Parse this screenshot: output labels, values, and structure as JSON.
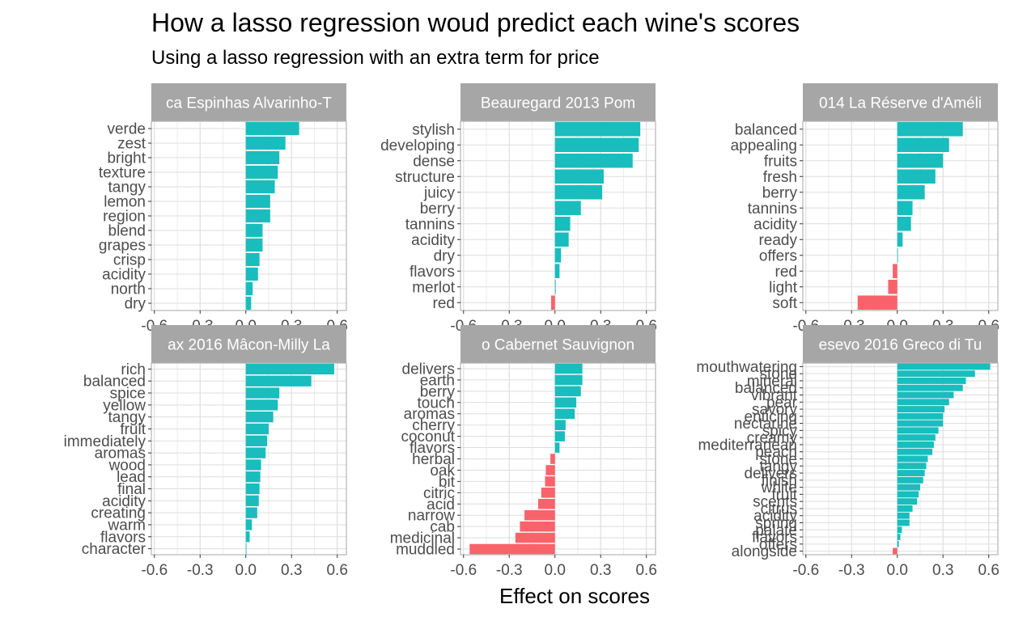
{
  "title": "How a lasso regression woud predict each wine's scores",
  "subtitle": "Using a lasso regression with an extra term for price",
  "xlabel": "Effect on scores",
  "colors": {
    "positive": "#19BDBD",
    "negative": "#F8636B",
    "strip": "#A6A6A6",
    "grid": "#DEDEDE",
    "panel_border": "#B3B3B3"
  },
  "chart_data": [
    {
      "type": "bar",
      "orientation": "horizontal",
      "facet_label": "ca Espinhas Alvarinho-T",
      "xlim": [
        -0.62,
        0.66
      ],
      "xticks": [
        -0.6,
        -0.3,
        0.0,
        0.3,
        0.6
      ],
      "xtick_labels": [
        "-0.6",
        "-0.3",
        "0.0",
        "0.3",
        "0.6"
      ],
      "categories": [
        "verde",
        "zest",
        "bright",
        "texture",
        "tangy",
        "lemon",
        "region",
        "blend",
        "grapes",
        "crisp",
        "acidity",
        "north",
        "dry"
      ],
      "values": [
        0.35,
        0.26,
        0.22,
        0.21,
        0.19,
        0.16,
        0.16,
        0.11,
        0.11,
        0.09,
        0.08,
        0.045,
        0.035
      ]
    },
    {
      "type": "bar",
      "orientation": "horizontal",
      "facet_label": "Beauregard 2013  Pom",
      "xlim": [
        -0.62,
        0.66
      ],
      "xticks": [
        -0.6,
        -0.3,
        0.0,
        0.3,
        0.6
      ],
      "xtick_labels": [
        "-0.6",
        "-0.3",
        "0.0",
        "0.3",
        "0.6"
      ],
      "categories": [
        "stylish",
        "developing",
        "dense",
        "structure",
        "juicy",
        "berry",
        "tannins",
        "acidity",
        "dry",
        "flavors",
        "merlot",
        "red"
      ],
      "values": [
        0.56,
        0.55,
        0.51,
        0.32,
        0.31,
        0.17,
        0.1,
        0.09,
        0.04,
        0.03,
        0.005,
        -0.025
      ]
    },
    {
      "type": "bar",
      "orientation": "horizontal",
      "facet_label": "014 La Réserve d'Améli",
      "xlim": [
        -0.62,
        0.66
      ],
      "xticks": [
        -0.6,
        -0.3,
        0.0,
        0.3,
        0.6
      ],
      "xtick_labels": [
        "-0.6",
        "-0.3",
        "0.0",
        "0.3",
        "0.6"
      ],
      "categories": [
        "balanced",
        "appealing",
        "fruits",
        "fresh",
        "berry",
        "tannins",
        "acidity",
        "ready",
        "offers",
        "red",
        "light",
        "soft"
      ],
      "values": [
        0.43,
        0.34,
        0.3,
        0.25,
        0.18,
        0.1,
        0.09,
        0.035,
        0.003,
        -0.03,
        -0.06,
        -0.26
      ]
    },
    {
      "type": "bar",
      "orientation": "horizontal",
      "facet_label": "ax 2016  Mâcon-Milly La",
      "xlim": [
        -0.62,
        0.66
      ],
      "xticks": [
        -0.6,
        -0.3,
        0.0,
        0.3,
        0.6
      ],
      "xtick_labels": [
        "-0.6",
        "-0.3",
        "0.0",
        "0.3",
        "0.6"
      ],
      "categories": [
        "rich",
        "balanced",
        "spice",
        "yellow",
        "tangy",
        "fruit",
        "immediately",
        "aromas",
        "wood",
        "lead",
        "final",
        "acidity",
        "creating",
        "warm",
        "flavors",
        "character"
      ],
      "values": [
        0.58,
        0.43,
        0.22,
        0.21,
        0.18,
        0.15,
        0.14,
        0.13,
        0.1,
        0.095,
        0.09,
        0.085,
        0.075,
        0.04,
        0.025,
        0.003
      ]
    },
    {
      "type": "bar",
      "orientation": "horizontal",
      "facet_label": "o Cabernet Sauvignon",
      "xlim": [
        -0.62,
        0.66
      ],
      "xticks": [
        -0.6,
        -0.3,
        0.0,
        0.3,
        0.6
      ],
      "xtick_labels": [
        "-0.6",
        "-0.3",
        "0.0",
        "0.3",
        "0.6"
      ],
      "categories": [
        "delivers",
        "earth",
        "berry",
        "touch",
        "aromas",
        "cherry",
        "coconut",
        "flavors",
        "herbal",
        "oak",
        "bit",
        "citric",
        "acid",
        "narrow",
        "cab",
        "medicinal",
        "muddled"
      ],
      "values": [
        0.18,
        0.18,
        0.17,
        0.14,
        0.13,
        0.07,
        0.065,
        0.03,
        -0.03,
        -0.06,
        -0.065,
        -0.09,
        -0.11,
        -0.2,
        -0.23,
        -0.26,
        -0.56
      ]
    },
    {
      "type": "bar",
      "orientation": "horizontal",
      "facet_label": "esevo 2016  Greco di Tu",
      "xlim": [
        -0.62,
        0.66
      ],
      "xticks": [
        -0.6,
        -0.3,
        0.0,
        0.3,
        0.6
      ],
      "xtick_labels": [
        "-0.6",
        "-0.3",
        "0.0",
        "0.3",
        "0.6"
      ],
      "categories": [
        "mouthwatering",
        "stone",
        "mineral",
        "balanced",
        "vibrant",
        "pear",
        "savory",
        "enticing",
        "nectarine",
        "spicy",
        "creamy",
        "mediterranean",
        "peach",
        "stone",
        "tangy",
        "delivers",
        "finish",
        "white",
        "fruit",
        "scents",
        "citrus",
        "acidity",
        "spring",
        "palate",
        "flavors",
        "offers",
        "alongside"
      ],
      "values": [
        0.61,
        0.51,
        0.45,
        0.43,
        0.37,
        0.34,
        0.31,
        0.3,
        0.3,
        0.27,
        0.25,
        0.24,
        0.23,
        0.2,
        0.19,
        0.18,
        0.17,
        0.15,
        0.14,
        0.13,
        0.1,
        0.08,
        0.08,
        0.03,
        0.02,
        0.01,
        -0.03
      ]
    }
  ]
}
